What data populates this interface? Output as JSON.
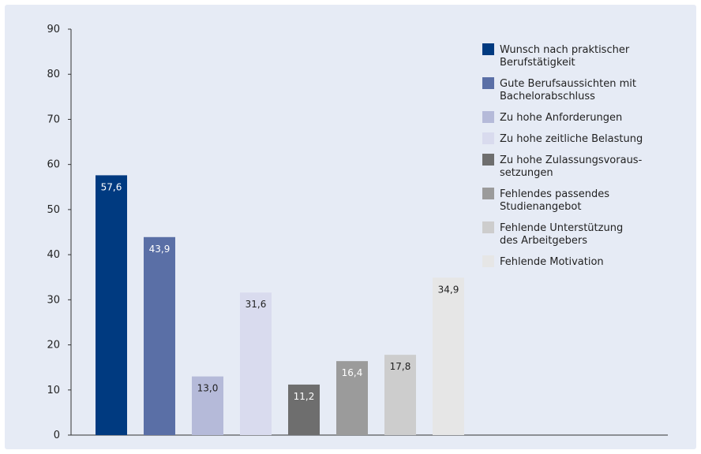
{
  "chart_data": {
    "type": "bar",
    "title": "",
    "xlabel": "",
    "ylabel": "",
    "ylim": [
      0,
      90
    ],
    "y_ticks": [
      "0",
      "10",
      "20",
      "30",
      "40",
      "50",
      "60",
      "70",
      "80",
      "90"
    ],
    "y_tick_values": [
      0,
      10,
      20,
      30,
      40,
      50,
      60,
      70,
      80,
      90
    ],
    "grid": false,
    "legend_position": "right",
    "background_color": "#e6ebf5",
    "series": [
      {
        "name": "Wunsch nach praktischer Berufstätigkeit",
        "value": 57.6,
        "label": "57,6",
        "color": "#003a80",
        "label_color": "#ffffff"
      },
      {
        "name": "Gute Berufsaussichten mit Bachelorabschluss",
        "value": 43.9,
        "label": "43,9",
        "color": "#5a6fa6",
        "label_color": "#ffffff"
      },
      {
        "name": "Zu hohe Anforderungen",
        "value": 13.0,
        "label": "13,0",
        "color": "#b5bad9",
        "label_color": "#222222"
      },
      {
        "name": "Zu hohe zeitliche Belastung",
        "value": 31.6,
        "label": "31,6",
        "color": "#d9dbee",
        "label_color": "#222222"
      },
      {
        "name": "Zu hohe Zulassungsvoraus-setzungen",
        "value": 11.2,
        "label": "11,2",
        "color": "#6e6e6e",
        "label_color": "#ffffff"
      },
      {
        "name": "Fehlendes passendes Studienangebot",
        "value": 16.4,
        "label": "16,4",
        "color": "#9b9b9b",
        "label_color": "#ffffff"
      },
      {
        "name": "Fehlende Unterstützung des Arbeitgebers",
        "value": 17.8,
        "label": "17,8",
        "color": "#cdcdcd",
        "label_color": "#222222"
      },
      {
        "name": "Fehlende Motivation",
        "value": 34.9,
        "label": "34,9",
        "color": "#e6e6e6",
        "label_color": "#222222"
      }
    ],
    "legend": [
      {
        "lines": [
          "Wunsch nach praktischer",
          "Berufstätigkeit"
        ]
      },
      {
        "lines": [
          "Gute Berufsaussichten mit",
          "Bachelorabschluss"
        ]
      },
      {
        "lines": [
          "Zu hohe Anforderungen"
        ]
      },
      {
        "lines": [
          "Zu hohe zeitliche Belastung"
        ]
      },
      {
        "lines": [
          "Zu hohe Zulassungsvoraus-",
          "setzungen"
        ]
      },
      {
        "lines": [
          "Fehlendes passendes",
          "Studienangebot"
        ]
      },
      {
        "lines": [
          "Fehlende Unterstützung",
          "des Arbeitgebers"
        ]
      },
      {
        "lines": [
          "Fehlende Motivation"
        ]
      }
    ]
  }
}
